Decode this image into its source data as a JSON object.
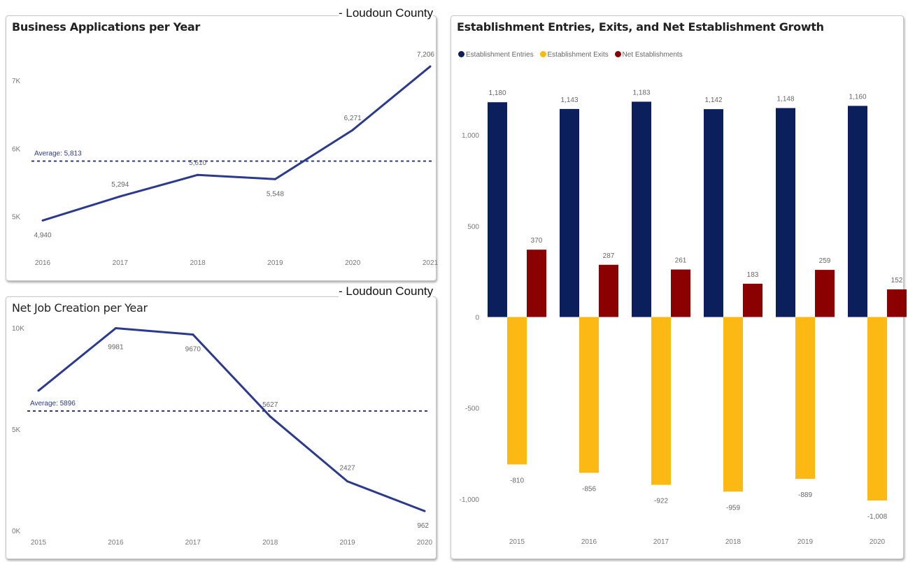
{
  "subtitles": [
    "- Loudoun County",
    "- Loudoun County"
  ],
  "colors": {
    "line": "#2b3a8c",
    "entries": "#0b1f5c",
    "exits": "#fdb913",
    "net": "#8b0000"
  },
  "chart_data": [
    {
      "type": "line",
      "title": "Business Applications per Year",
      "x": [
        "2016",
        "2017",
        "2018",
        "2019",
        "2020",
        "2021"
      ],
      "values": [
        4940,
        5294,
        5610,
        5548,
        6271,
        7206
      ],
      "data_labels": [
        "4,940",
        "5,294",
        "5,610",
        "5,548",
        "6,271",
        "7,206"
      ],
      "average": {
        "value": 5813,
        "label": "Average: 5,813"
      },
      "y_ticks": [
        {
          "v": 5000,
          "label": "5K"
        },
        {
          "v": 6000,
          "label": "6K"
        },
        {
          "v": 7000,
          "label": "7K"
        }
      ],
      "ylim": [
        4800,
        7330
      ],
      "grid": false
    },
    {
      "type": "line",
      "title": "Net Job Creation per Year",
      "x": [
        "2015",
        "2016",
        "2017",
        "2018",
        "2019",
        "2020"
      ],
      "values": [
        6900,
        9981,
        9670,
        5627,
        2427,
        962
      ],
      "data_labels": [
        "",
        "9981",
        "9670",
        "5627",
        "2427",
        "962"
      ],
      "average": {
        "value": 5896,
        "label": "Average: 5896"
      },
      "y_ticks": [
        {
          "v": 0,
          "label": "0K"
        },
        {
          "v": 5000,
          "label": "5K"
        },
        {
          "v": 10000,
          "label": "10K"
        }
      ],
      "ylim": [
        0,
        10000
      ],
      "grid": false
    },
    {
      "type": "bar",
      "title": "Establishment Entries, Exits, and Net Establishment Growth",
      "categories": [
        "2015",
        "2016",
        "2017",
        "2018",
        "2019",
        "2020"
      ],
      "series": [
        {
          "name": "Establishment Entries",
          "values": [
            1180,
            1143,
            1183,
            1142,
            1148,
            1160
          ],
          "labels": [
            "1,180",
            "1,143",
            "1,183",
            "1,142",
            "1,148",
            "1,160"
          ]
        },
        {
          "name": "Establishment Exits",
          "values": [
            -810,
            -856,
            -922,
            -959,
            -889,
            -1008
          ],
          "labels": [
            "-810",
            "-856",
            "-922",
            "-959",
            "-889",
            "-1,008"
          ]
        },
        {
          "name": "Net Establishments",
          "values": [
            370,
            287,
            261,
            183,
            259,
            152
          ],
          "labels": [
            "370",
            "287",
            "261",
            "183",
            "259",
            "152"
          ]
        }
      ],
      "y_ticks": [
        {
          "v": -1000,
          "label": "-1,000"
        },
        {
          "v": -500,
          "label": "-500"
        },
        {
          "v": 0,
          "label": "0"
        },
        {
          "v": 500,
          "label": "500"
        },
        {
          "v": 1000,
          "label": "1,000"
        }
      ],
      "ylim": [
        -1150,
        1300
      ],
      "legend": "top-left",
      "grid": false
    }
  ]
}
